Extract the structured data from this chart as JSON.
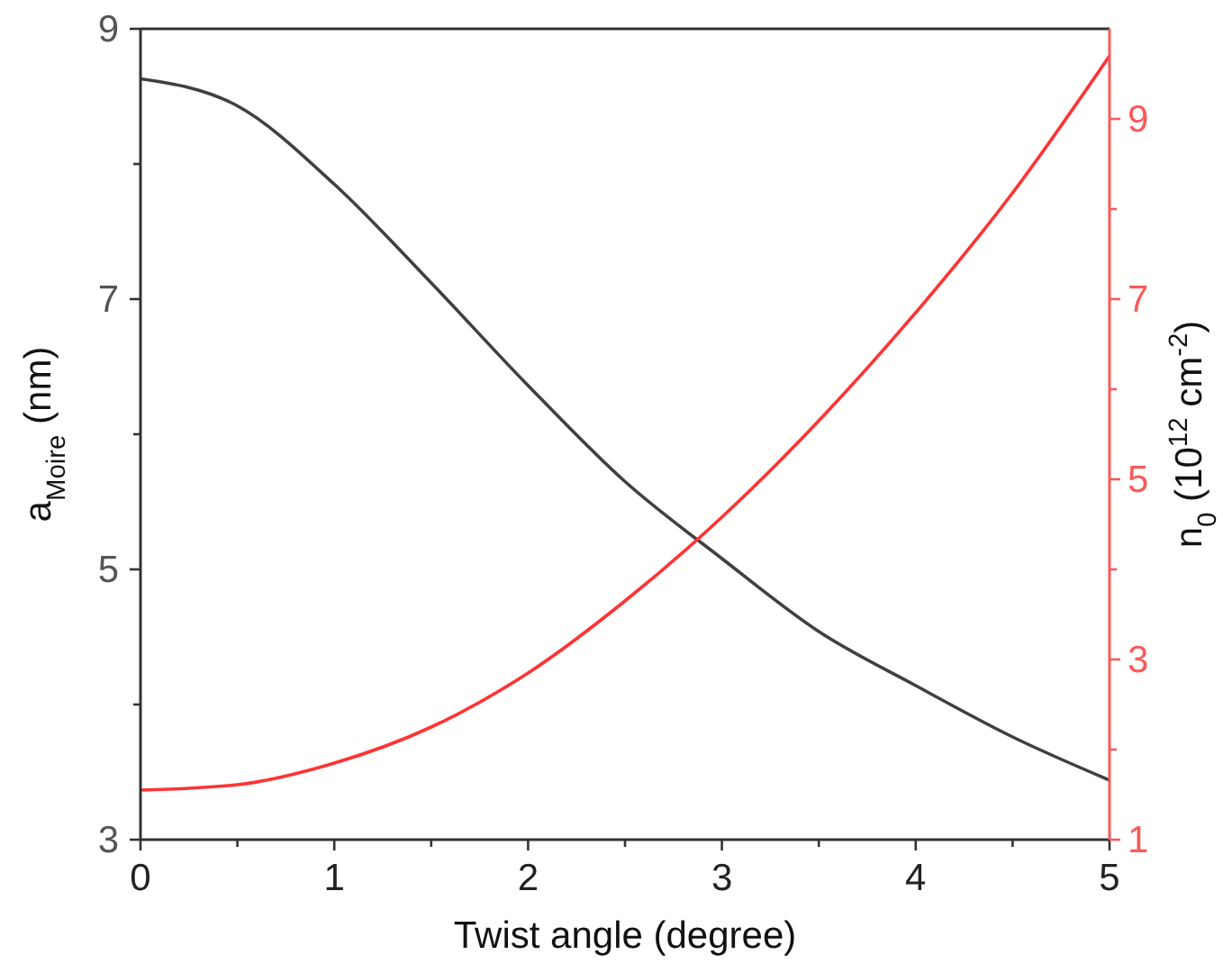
{
  "chart_data": {
    "type": "line",
    "xlabel": "Twist angle (degree)",
    "ylabel": "a$_{Moire}$ (nm)",
    "y2label": "n$_{0}$ (10$^{12}$ cm$^{-2}$)",
    "x": [
      0,
      0.5,
      1,
      1.5,
      2,
      2.5,
      3,
      3.5,
      4,
      4.5,
      5
    ],
    "series": [
      {
        "color": "#404040",
        "values": [
          8.63,
          8.43,
          7.85,
          7.12,
          6.36,
          5.65,
          5.08,
          4.54,
          4.14,
          3.76,
          3.44
        ]
      },
      {
        "color": "#ff3333",
        "axis": "y2",
        "values": [
          1.55,
          1.61,
          1.85,
          2.25,
          2.85,
          3.65,
          4.58,
          5.65,
          6.85,
          8.18,
          9.7
        ]
      }
    ],
    "xlim": [
      0,
      5
    ],
    "xticks": [
      0,
      {
        "value": 0.5,
        "label": null
      },
      1,
      {
        "value": 1.5,
        "label": null
      },
      2,
      {
        "value": 2.5,
        "label": null
      },
      3,
      {
        "value": 3.5,
        "label": null
      },
      4,
      {
        "value": 4.5,
        "label": null
      },
      5
    ],
    "ylim": [
      3,
      9
    ],
    "yticks": [
      3,
      {
        "value": 4,
        "label": null
      },
      5,
      {
        "value": 6,
        "label": null
      },
      7,
      {
        "value": 8,
        "label": null
      },
      9
    ],
    "y2lim": [
      1,
      10
    ],
    "y2ticks": [
      1,
      {
        "value": 2,
        "label": null
      },
      3,
      {
        "value": 4,
        "label": null
      },
      5,
      {
        "value": 6,
        "label": null
      },
      7,
      {
        "value": 8,
        "label": null
      },
      9
    ],
    "grid": false,
    "marker": "none",
    "line_style": "solid"
  }
}
